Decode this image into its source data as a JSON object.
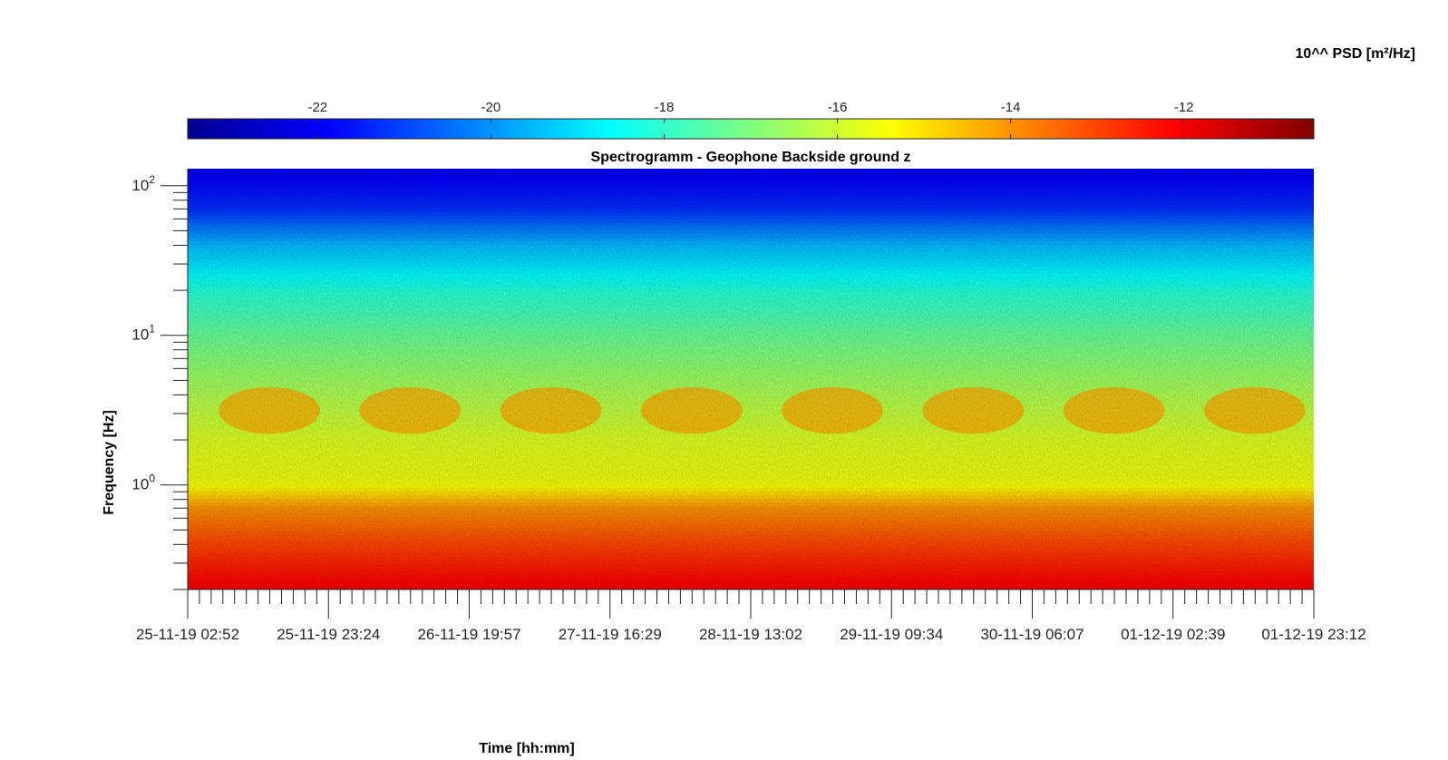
{
  "chart_data": {
    "type": "heatmap",
    "title": "Spectrogramm - Geophone Backside ground z",
    "xlabel": "Time [hh:mm]",
    "ylabel": "Frequency [Hz]",
    "colorbar": {
      "label": "10^^ PSD [m²/Hz]",
      "ticks": [
        "-22",
        "-20",
        "-18",
        "-16",
        "-14",
        "-12"
      ],
      "tick_values": [
        -22,
        -20,
        -18,
        -16,
        -14,
        -12
      ],
      "range": [
        -23.5,
        -10.5
      ],
      "colormap": "jet",
      "placement": "top"
    },
    "x_ticks": [
      "25-11-19 02:52",
      "25-11-19 23:24",
      "26-11-19 19:57",
      "27-11-19 16:29",
      "28-11-19 13:02",
      "29-11-19 09:34",
      "30-11-19 06:07",
      "01-12-19 02:39",
      "01-12-19 23:12"
    ],
    "y_scale": "log",
    "y_ticks": [
      {
        "base": "10",
        "exp": "2",
        "value": 100
      },
      {
        "base": "10",
        "exp": "1",
        "value": 10
      },
      {
        "base": "10",
        "exp": "0",
        "value": 1
      }
    ],
    "ylim": [
      0.2,
      130
    ],
    "psd_profile": [
      {
        "freq_hz": 120,
        "log_psd": -22.0
      },
      {
        "freq_hz": 70,
        "log_psd": -21.3
      },
      {
        "freq_hz": 40,
        "log_psd": -19.5
      },
      {
        "freq_hz": 20,
        "log_psd": -18.2
      },
      {
        "freq_hz": 10,
        "log_psd": -17.3
      },
      {
        "freq_hz": 5,
        "log_psd": -16.6
      },
      {
        "freq_hz": 2,
        "log_psd": -15.8
      },
      {
        "freq_hz": 1,
        "log_psd": -15.5
      },
      {
        "freq_hz": 0.7,
        "log_psd": -14.0
      },
      {
        "freq_hz": 0.4,
        "log_psd": -13.0
      },
      {
        "freq_hz": 0.2,
        "log_psd": -12.0
      }
    ],
    "daytime_activity_band": {
      "freq_range_hz": [
        2.2,
        4.5
      ],
      "log_psd": -14.3
    },
    "colormap_stops": [
      "#00008f",
      "#0000ff",
      "#00ffff",
      "#ffff00",
      "#ff0000",
      "#800000"
    ]
  }
}
